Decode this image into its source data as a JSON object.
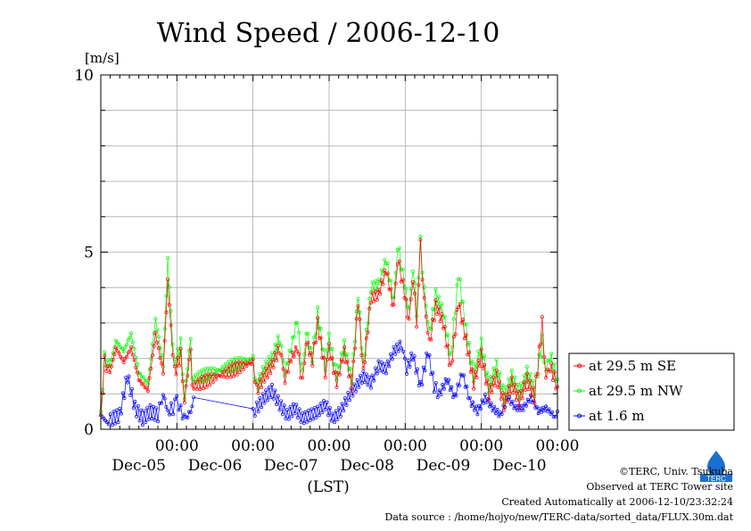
{
  "chart_data": {
    "type": "line",
    "title": "Wind Speed / 2006-12-10",
    "ylabel": "[m/s]",
    "xlabel": "(LST)",
    "ylim": [
      0,
      10
    ],
    "yticks": [
      "0",
      "5",
      "10"
    ],
    "xlim_days": [
      0,
      6
    ],
    "time_ticks": [
      "00:00",
      "00:00",
      "00:00",
      "00:00",
      "00:00",
      "00:00"
    ],
    "date_labels": [
      "Dec-05",
      "Dec-06",
      "Dec-07",
      "Dec-08",
      "Dec-09",
      "Dec-10"
    ],
    "grid": true,
    "legend_position": "right",
    "series": [
      {
        "name": "at 29.5 m SE",
        "color": "#ff0000",
        "keypoints": [
          [
            0.0,
            0.4
          ],
          [
            0.05,
            1.9
          ],
          [
            0.12,
            1.6
          ],
          [
            0.2,
            2.3
          ],
          [
            0.3,
            1.9
          ],
          [
            0.4,
            2.3
          ],
          [
            0.5,
            1.4
          ],
          [
            0.62,
            1.1
          ],
          [
            0.72,
            2.7
          ],
          [
            0.82,
            1.6
          ],
          [
            0.88,
            4.2
          ],
          [
            0.92,
            2.9
          ],
          [
            0.97,
            1.6
          ],
          [
            1.05,
            2.1
          ],
          [
            1.1,
            0.8
          ],
          [
            1.18,
            2.3
          ],
          [
            1.2,
            1.2
          ],
          [
            2.0,
            1.9
          ],
          [
            2.05,
            1.1
          ],
          [
            2.15,
            1.5
          ],
          [
            2.25,
            1.8
          ],
          [
            2.35,
            2.3
          ],
          [
            2.42,
            1.4
          ],
          [
            2.5,
            2.0
          ],
          [
            2.58,
            2.3
          ],
          [
            2.65,
            1.3
          ],
          [
            2.7,
            2.5
          ],
          [
            2.78,
            1.9
          ],
          [
            2.85,
            3.0
          ],
          [
            2.95,
            1.6
          ],
          [
            3.0,
            2.3
          ],
          [
            3.1,
            1.3
          ],
          [
            3.2,
            2.2
          ],
          [
            3.3,
            1.2
          ],
          [
            3.38,
            3.6
          ],
          [
            3.45,
            1.6
          ],
          [
            3.55,
            3.7
          ],
          [
            3.65,
            3.8
          ],
          [
            3.75,
            4.5
          ],
          [
            3.85,
            3.4
          ],
          [
            3.9,
            4.8
          ],
          [
            3.97,
            4.1
          ],
          [
            4.05,
            3.0
          ],
          [
            4.1,
            4.3
          ],
          [
            4.15,
            3.0
          ],
          [
            4.2,
            5.2
          ],
          [
            4.25,
            3.6
          ],
          [
            4.32,
            2.4
          ],
          [
            4.4,
            3.5
          ],
          [
            4.5,
            3.0
          ],
          [
            4.6,
            1.7
          ],
          [
            4.7,
            3.6
          ],
          [
            4.8,
            2.5
          ],
          [
            4.9,
            1.3
          ],
          [
            5.0,
            2.1
          ],
          [
            5.1,
            1.0
          ],
          [
            5.2,
            1.5
          ],
          [
            5.3,
            0.7
          ],
          [
            5.4,
            1.3
          ],
          [
            5.5,
            0.8
          ],
          [
            5.6,
            1.4
          ],
          [
            5.7,
            0.9
          ],
          [
            5.8,
            3.0
          ],
          [
            5.85,
            1.4
          ],
          [
            5.9,
            1.8
          ],
          [
            6.0,
            1.2
          ]
        ]
      },
      {
        "name": "at 29.5 m NW",
        "color": "#00ff00",
        "keypoints": [
          [
            0.0,
            0.5
          ],
          [
            0.05,
            2.0
          ],
          [
            0.12,
            1.8
          ],
          [
            0.2,
            2.5
          ],
          [
            0.3,
            2.2
          ],
          [
            0.4,
            2.7
          ],
          [
            0.5,
            1.6
          ],
          [
            0.62,
            1.3
          ],
          [
            0.72,
            3.1
          ],
          [
            0.82,
            1.8
          ],
          [
            0.88,
            4.8
          ],
          [
            0.92,
            3.3
          ],
          [
            0.97,
            1.8
          ],
          [
            1.05,
            2.4
          ],
          [
            1.1,
            0.9
          ],
          [
            1.18,
            2.6
          ],
          [
            1.2,
            1.4
          ],
          [
            2.0,
            2.0
          ],
          [
            2.05,
            1.2
          ],
          [
            2.15,
            1.7
          ],
          [
            2.25,
            2.0
          ],
          [
            2.35,
            2.6
          ],
          [
            2.42,
            1.6
          ],
          [
            2.5,
            2.3
          ],
          [
            2.58,
            3.1
          ],
          [
            2.65,
            1.5
          ],
          [
            2.7,
            2.8
          ],
          [
            2.78,
            2.0
          ],
          [
            2.85,
            3.3
          ],
          [
            2.95,
            1.8
          ],
          [
            3.0,
            2.6
          ],
          [
            3.1,
            1.5
          ],
          [
            3.2,
            2.4
          ],
          [
            3.3,
            1.4
          ],
          [
            3.38,
            3.8
          ],
          [
            3.45,
            1.8
          ],
          [
            3.55,
            4.0
          ],
          [
            3.65,
            4.1
          ],
          [
            3.75,
            4.8
          ],
          [
            3.85,
            3.6
          ],
          [
            3.9,
            5.2
          ],
          [
            3.97,
            4.4
          ],
          [
            4.05,
            3.3
          ],
          [
            4.1,
            4.6
          ],
          [
            4.15,
            3.3
          ],
          [
            4.2,
            5.3
          ],
          [
            4.25,
            3.9
          ],
          [
            4.32,
            2.7
          ],
          [
            4.4,
            3.8
          ],
          [
            4.5,
            3.3
          ],
          [
            4.6,
            2.0
          ],
          [
            4.7,
            4.4
          ],
          [
            4.8,
            2.8
          ],
          [
            4.9,
            1.5
          ],
          [
            5.0,
            2.4
          ],
          [
            5.1,
            1.2
          ],
          [
            5.2,
            1.8
          ],
          [
            5.3,
            0.9
          ],
          [
            5.4,
            1.5
          ],
          [
            5.5,
            1.0
          ],
          [
            5.6,
            1.6
          ],
          [
            5.7,
            1.1
          ],
          [
            5.8,
            2.5
          ],
          [
            5.85,
            1.6
          ],
          [
            5.9,
            2.1
          ],
          [
            6.0,
            1.4
          ]
        ]
      },
      {
        "name": "at 1.6 m",
        "color": "#0000ff",
        "keypoints": [
          [
            0.0,
            0.4
          ],
          [
            0.08,
            0.2
          ],
          [
            0.15,
            0.3
          ],
          [
            0.25,
            0.4
          ],
          [
            0.35,
            1.5
          ],
          [
            0.45,
            0.6
          ],
          [
            0.55,
            0.3
          ],
          [
            0.65,
            0.5
          ],
          [
            0.75,
            0.4
          ],
          [
            0.82,
            1.0
          ],
          [
            0.88,
            0.5
          ],
          [
            0.95,
            0.6
          ],
          [
            1.0,
            0.9
          ],
          [
            1.05,
            0.5
          ],
          [
            1.12,
            0.3
          ],
          [
            1.2,
            0.6
          ],
          [
            1.22,
            0.9
          ],
          [
            2.0,
            0.5
          ],
          [
            2.05,
            0.6
          ],
          [
            2.15,
            0.9
          ],
          [
            2.25,
            1.1
          ],
          [
            2.35,
            0.7
          ],
          [
            2.45,
            0.4
          ],
          [
            2.55,
            0.6
          ],
          [
            2.65,
            0.3
          ],
          [
            2.75,
            0.4
          ],
          [
            2.85,
            0.5
          ],
          [
            2.95,
            0.7
          ],
          [
            3.05,
            0.3
          ],
          [
            3.15,
            0.5
          ],
          [
            3.25,
            0.9
          ],
          [
            3.35,
            1.2
          ],
          [
            3.45,
            1.5
          ],
          [
            3.55,
            1.3
          ],
          [
            3.65,
            1.8
          ],
          [
            3.75,
            1.7
          ],
          [
            3.85,
            2.2
          ],
          [
            3.95,
            2.4
          ],
          [
            4.02,
            1.7
          ],
          [
            4.1,
            2.1
          ],
          [
            4.2,
            1.2
          ],
          [
            4.3,
            2.2
          ],
          [
            4.38,
            1.2
          ],
          [
            4.45,
            1.0
          ],
          [
            4.55,
            1.4
          ],
          [
            4.65,
            0.9
          ],
          [
            4.75,
            1.6
          ],
          [
            4.85,
            0.8
          ],
          [
            4.95,
            0.5
          ],
          [
            5.05,
            0.9
          ],
          [
            5.15,
            0.6
          ],
          [
            5.25,
            0.4
          ],
          [
            5.35,
            0.9
          ],
          [
            5.45,
            0.6
          ],
          [
            5.55,
            0.6
          ],
          [
            5.65,
            0.9
          ],
          [
            5.75,
            0.5
          ],
          [
            5.85,
            0.6
          ],
          [
            5.95,
            0.4
          ],
          [
            6.0,
            0.5
          ]
        ]
      }
    ],
    "gap_days": [
      1.22,
      2.0
    ]
  },
  "footer": {
    "copyright": "©TERC, Univ. Tsukuba",
    "observed": "Observed at TERC Tower site",
    "created": "Created Automatically at 2006-12-10/23:32:24",
    "source": "Data source : /home/hojyo/new/TERC-data/sorted_data/FLUX.30m.dat"
  },
  "logo": {
    "text": "TERC",
    "color": "#1a6fd0"
  }
}
